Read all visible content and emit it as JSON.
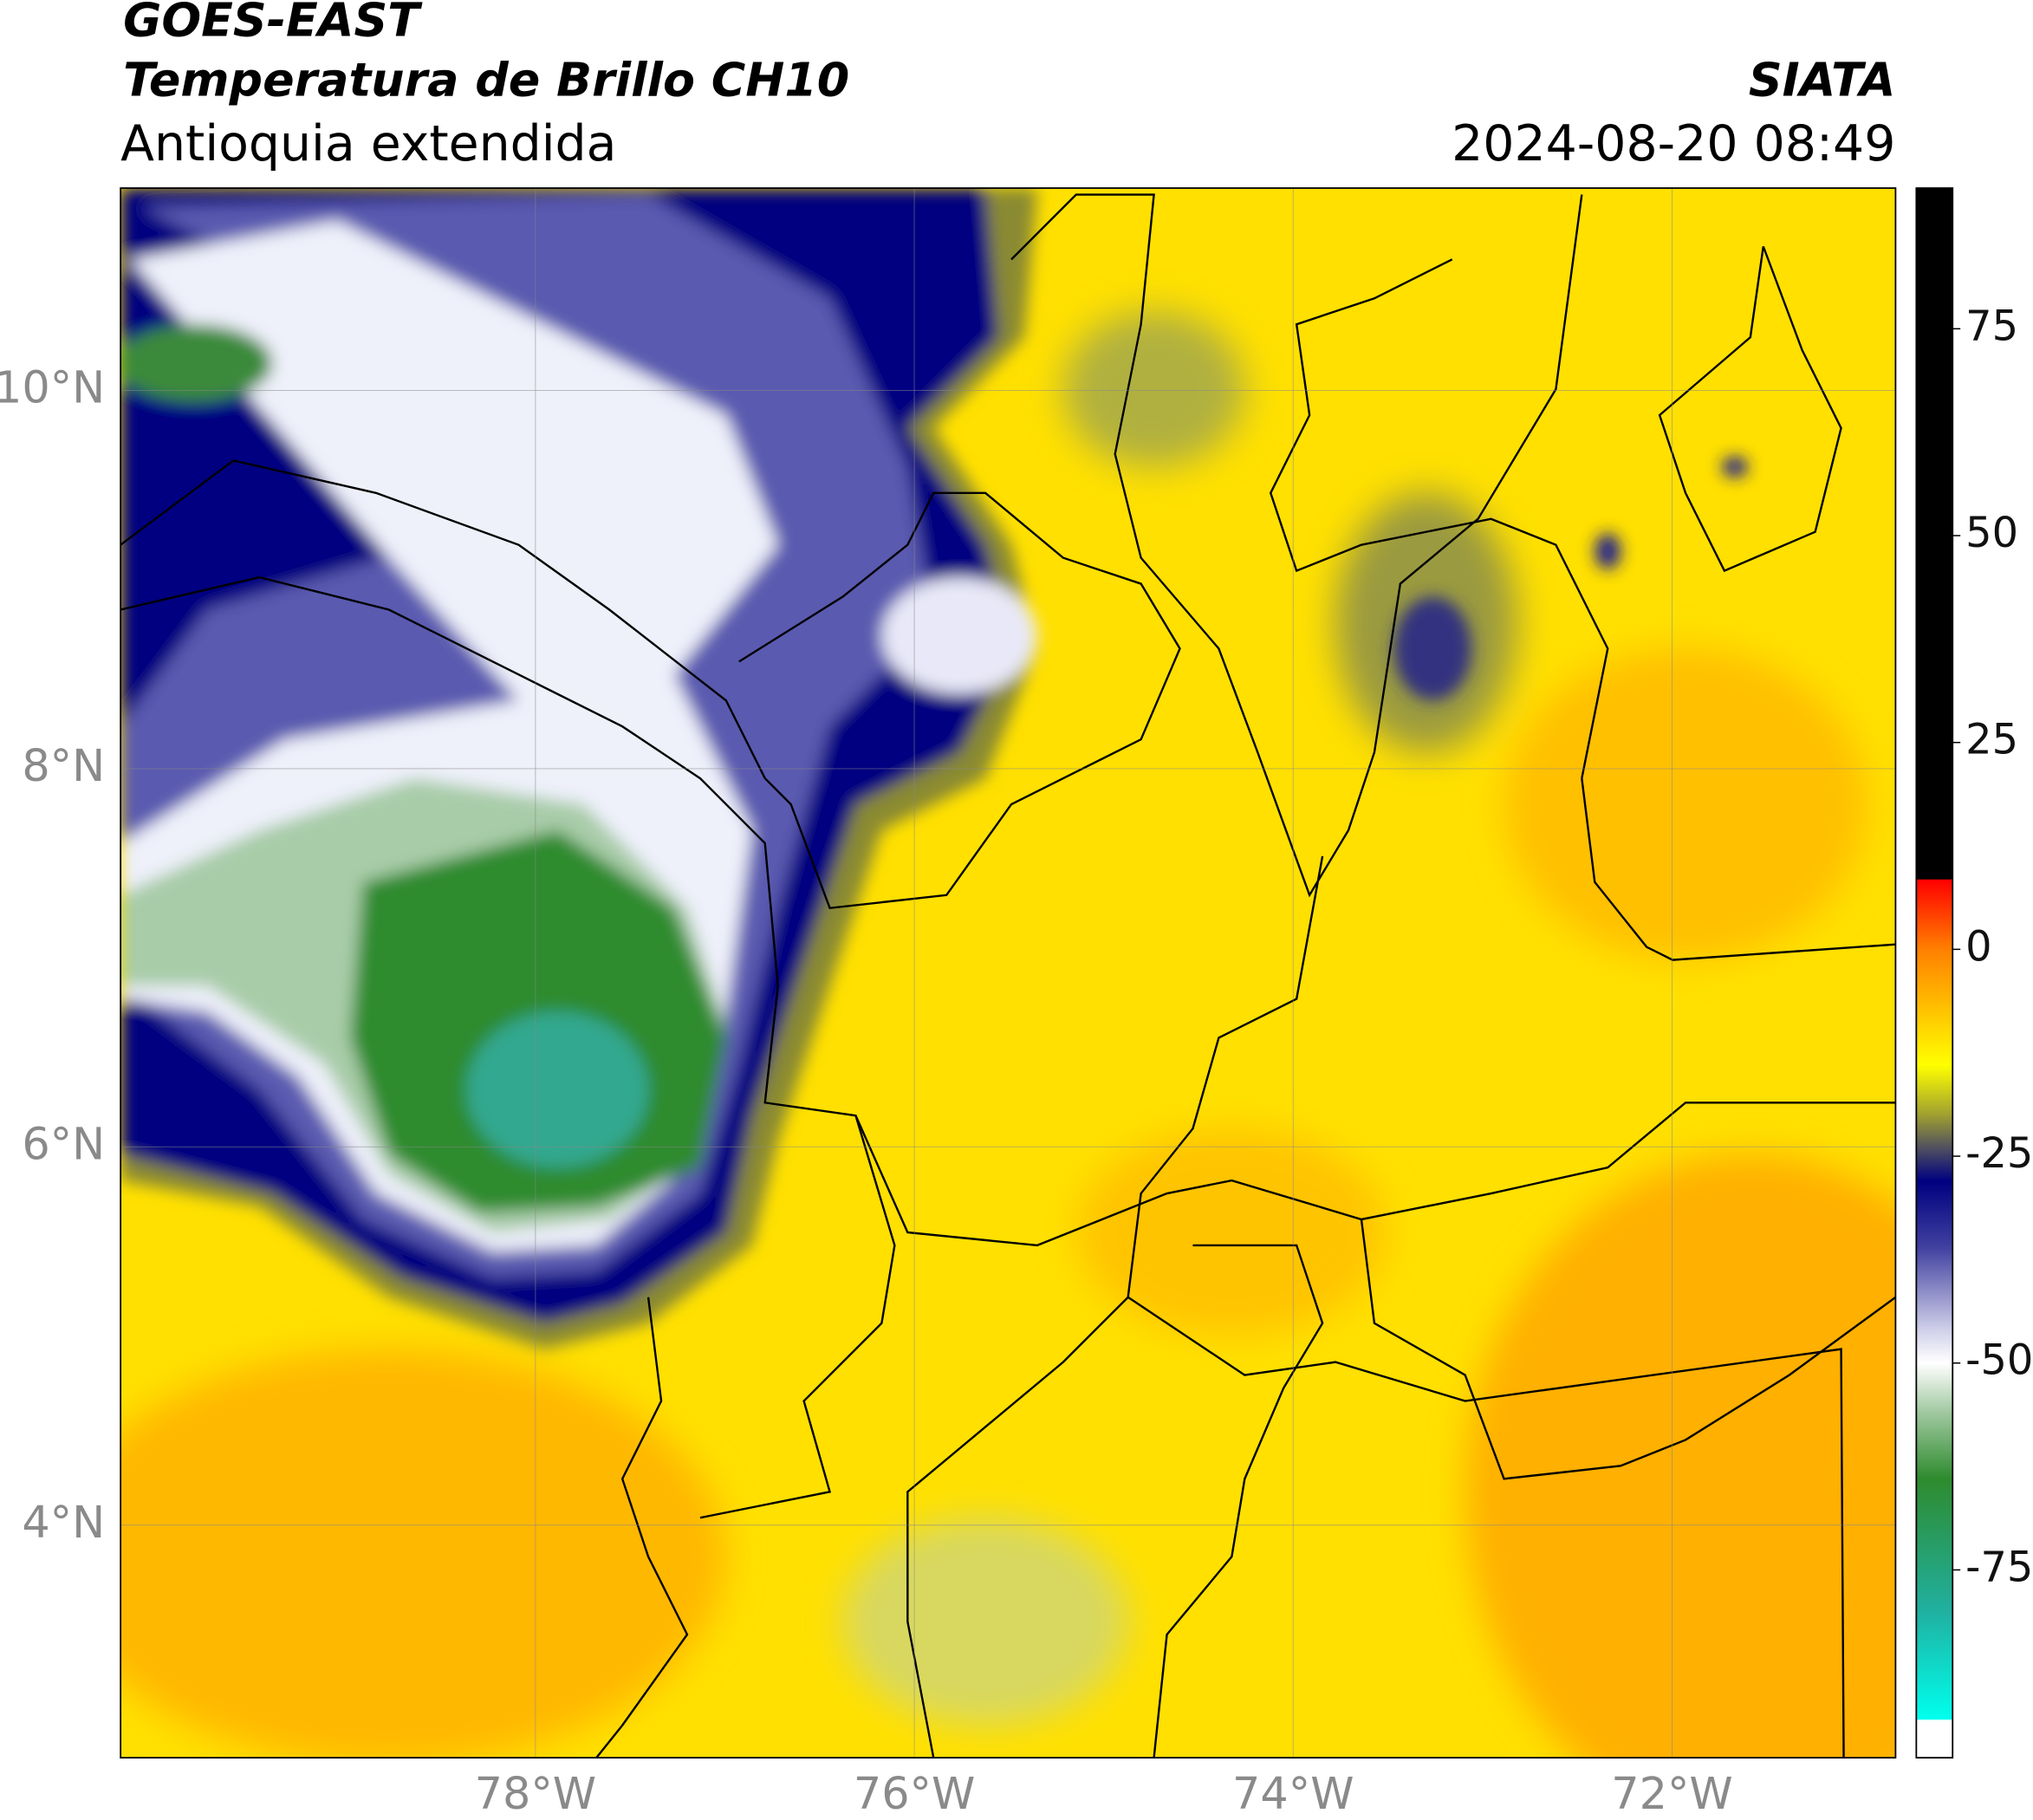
{
  "chart_data": {
    "type": "map",
    "title": "GOES-EAST",
    "subtitle": "Temperatura de Brillo CH10",
    "region": "Antioquia extendida",
    "source": "SIATA",
    "timestamp": "2024-08-20 08:49",
    "xlim": [
      -80.19,
      -70.82
    ],
    "ylim": [
      2.77,
      11.07
    ],
    "xticks": [
      {
        "value": -78,
        "label": "78°W"
      },
      {
        "value": -76,
        "label": "76°W"
      },
      {
        "value": -74,
        "label": "74°W"
      },
      {
        "value": -72,
        "label": "72°W"
      }
    ],
    "yticks": [
      {
        "value": 10,
        "label": "10°N"
      },
      {
        "value": 8,
        "label": "8°N"
      },
      {
        "value": 6,
        "label": "6°N"
      },
      {
        "value": 4,
        "label": "4°N"
      }
    ],
    "grid": true,
    "colorbar": {
      "lim": [
        -97.7,
        92
      ],
      "ticks": [
        75,
        50,
        25,
        0,
        -25,
        -50,
        -75
      ],
      "colormap": [
        {
          "value": 92,
          "color": "#000000"
        },
        {
          "value": 8.5,
          "color": "#000000"
        },
        {
          "value": 8.4,
          "color": "#ff0000"
        },
        {
          "value": 0,
          "color": "#ff8000"
        },
        {
          "value": -14,
          "color": "#ffff00"
        },
        {
          "value": -20,
          "color": "#a0a030"
        },
        {
          "value": -24,
          "color": "#505060"
        },
        {
          "value": -28,
          "color": "#000080"
        },
        {
          "value": -36,
          "color": "#4040a0"
        },
        {
          "value": -46,
          "color": "#d0d0ea"
        },
        {
          "value": -50,
          "color": "#ffffff"
        },
        {
          "value": -56,
          "color": "#a0c8a0"
        },
        {
          "value": -64,
          "color": "#2e8b2e"
        },
        {
          "value": -80,
          "color": "#20b0a0"
        },
        {
          "value": -93,
          "color": "#00ffee"
        },
        {
          "value": -93.2,
          "color": "#ffffff"
        },
        {
          "value": -97.7,
          "color": "#ffffff"
        }
      ]
    }
  }
}
